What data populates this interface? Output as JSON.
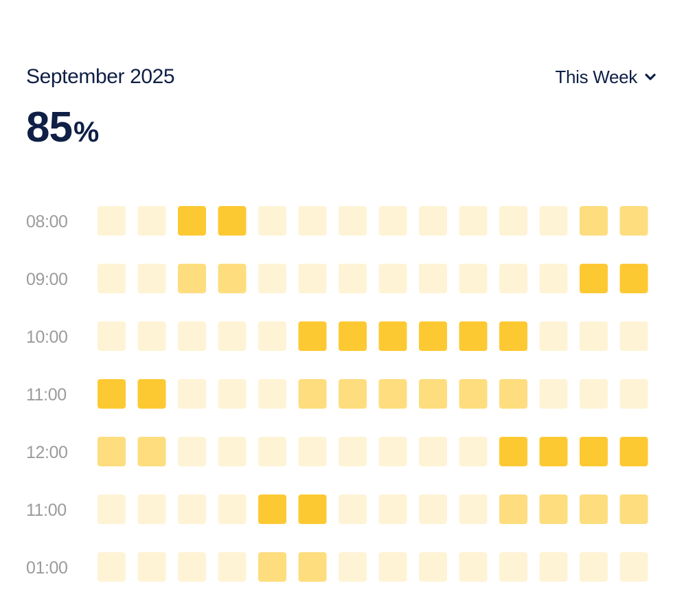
{
  "header": {
    "title": "September 2025",
    "period_selector": "This Week"
  },
  "summary": {
    "value": "85",
    "unit": "%"
  },
  "icons": {
    "dropdown": "chevron-down-icon"
  },
  "colors": {
    "text_primary": "#0f1f45",
    "text_secondary": "#9b9b9b",
    "intensity_low": "#fef3d4",
    "intensity_medium": "#fddd7e",
    "intensity_high": "#fdc933"
  },
  "chart_data": {
    "type": "heatmap",
    "title": "September 2025",
    "summary": "85%",
    "y_labels": [
      "08:00",
      "09:00",
      "10:00",
      "11:00",
      "12:00",
      "11:00",
      "01:00"
    ],
    "columns": 14,
    "scale": [
      "low",
      "medium",
      "high"
    ],
    "values": [
      [
        0,
        0,
        2,
        2,
        0,
        0,
        0,
        0,
        0,
        0,
        0,
        0,
        1,
        1
      ],
      [
        0,
        0,
        1,
        1,
        0,
        0,
        0,
        0,
        0,
        0,
        0,
        0,
        2,
        2
      ],
      [
        0,
        0,
        0,
        0,
        0,
        2,
        2,
        2,
        2,
        2,
        2,
        0,
        0,
        0
      ],
      [
        2,
        2,
        0,
        0,
        0,
        1,
        1,
        1,
        1,
        1,
        1,
        0,
        0,
        0
      ],
      [
        1,
        1,
        0,
        0,
        0,
        0,
        0,
        0,
        0,
        0,
        2,
        2,
        2,
        2
      ],
      [
        0,
        0,
        0,
        0,
        2,
        2,
        0,
        0,
        0,
        0,
        1,
        1,
        1,
        1
      ],
      [
        0,
        0,
        0,
        0,
        1,
        1,
        0,
        0,
        0,
        0,
        0,
        0,
        0,
        0
      ]
    ]
  }
}
